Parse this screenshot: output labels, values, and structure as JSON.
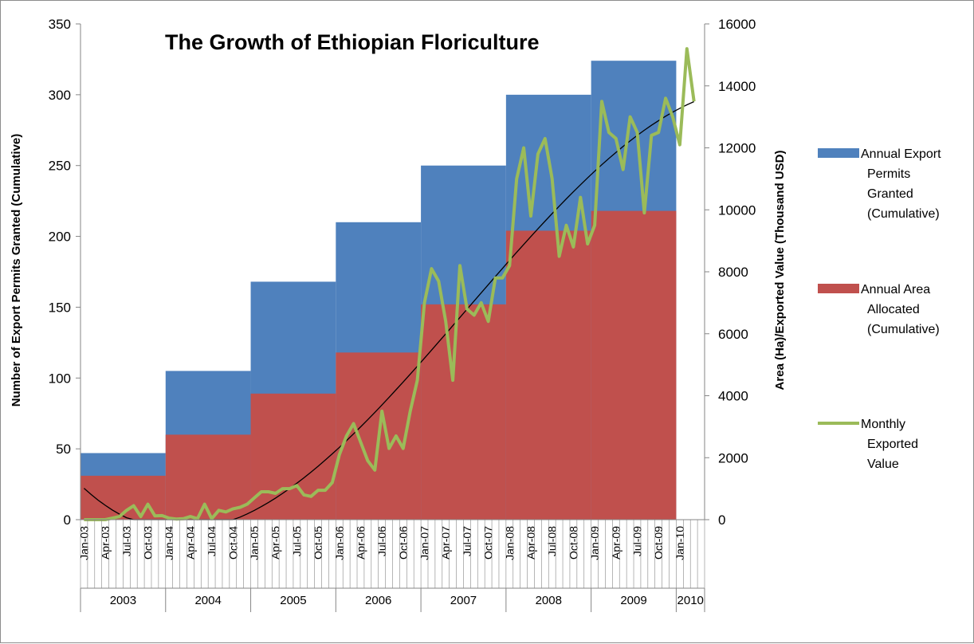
{
  "chart_data": {
    "type": "bar",
    "title": "The Growth of Ethiopian Floriculture",
    "ylabel_left": "Number of Export Permits Granted (Cumulative)",
    "ylabel_right": "Area (Ha)/Exported Value (Thousand USD)",
    "ylim_left": [
      0,
      350
    ],
    "ylim_right": [
      0,
      16000
    ],
    "yticks_left": [
      0,
      50,
      100,
      150,
      200,
      250,
      300,
      350
    ],
    "yticks_right": [
      0,
      2000,
      4000,
      6000,
      8000,
      10000,
      12000,
      14000,
      16000
    ],
    "x_tick_labels": [
      "Jan-03",
      "Apr-03",
      "Jul-03",
      "Oct-03",
      "Jan-04",
      "Apr-04",
      "Jul-04",
      "Oct-04",
      "Jan-05",
      "Apr-05",
      "Jul-05",
      "Oct-05",
      "Jan-06",
      "Apr-06",
      "Jul-06",
      "Oct-06",
      "Jan-07",
      "Apr-07",
      "Jul-07",
      "Oct-07",
      "Jan-08",
      "Apr-08",
      "Jul-08",
      "Oct-08",
      "Jan-09",
      "Apr-09",
      "Jul-09",
      "Oct-09",
      "Jan-10"
    ],
    "years": [
      "2003",
      "2004",
      "2005",
      "2006",
      "2007",
      "2008",
      "2009",
      "2010"
    ],
    "grid": false,
    "legend_placement": "right",
    "series": [
      {
        "name": "Annual Export Permits Granted (Cumulative)",
        "type": "bar",
        "axis": "left",
        "color": "#4f81bd",
        "values": [
          47,
          105,
          168,
          210,
          250,
          300,
          324
        ]
      },
      {
        "name": "Annual Area Allocated (Cumulative)",
        "type": "bar",
        "axis": "left",
        "color": "#c0504d",
        "values": [
          31,
          60,
          89,
          118,
          152,
          204,
          218
        ]
      },
      {
        "name": "Monthly Exported Value",
        "type": "line",
        "axis": "right",
        "color": "#9bbb59",
        "values": [
          0,
          0,
          0,
          0,
          50,
          100,
          300,
          450,
          100,
          500,
          120,
          130,
          50,
          20,
          30,
          100,
          30,
          500,
          30,
          300,
          250,
          350,
          400,
          500,
          700,
          900,
          900,
          850,
          1000,
          1000,
          1100,
          800,
          750,
          950,
          950,
          1200,
          2100,
          2700,
          3100,
          2500,
          1900,
          1600,
          3500,
          2300,
          2700,
          2300,
          3500,
          4500,
          7000,
          8100,
          7700,
          6400,
          4500,
          8200,
          6800,
          6600,
          7000,
          6400,
          7800,
          7800,
          8200,
          11000,
          12000,
          9800,
          11800,
          12300,
          11000,
          8500,
          9500,
          8800,
          10400,
          8900,
          9500,
          13500,
          12500,
          12300,
          11300,
          13000,
          12500,
          9900,
          12400,
          12500,
          13600,
          13000,
          12100,
          15200,
          13500
        ]
      },
      {
        "name": "",
        "type": "trend",
        "axis": "right",
        "color": "#000000"
      }
    ]
  }
}
